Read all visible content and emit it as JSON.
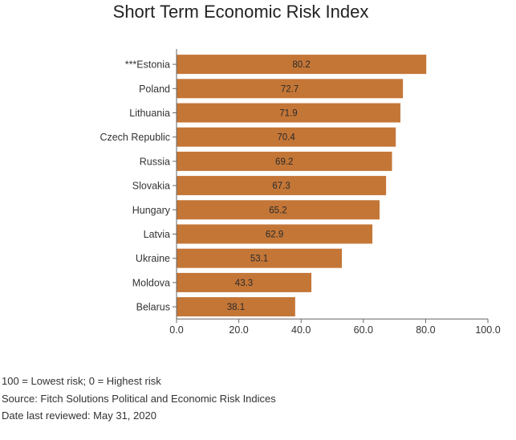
{
  "chart_data": {
    "type": "bar",
    "orientation": "horizontal",
    "title": "Short Term Economic Risk Index",
    "categories": [
      "***Estonia",
      "Poland",
      "Lithuania",
      "Czech Republic",
      "Russia",
      "Slovakia",
      "Hungary",
      "Latvia",
      "Ukraine",
      "Moldova",
      "Belarus"
    ],
    "values": [
      80.2,
      72.7,
      71.9,
      70.4,
      69.2,
      67.3,
      65.2,
      62.9,
      53.1,
      43.3,
      38.1
    ],
    "value_labels": [
      "80.2",
      "72.7",
      "71.9",
      "70.4",
      "69.2",
      "67.3",
      "65.2",
      "62.9",
      "53.1",
      "43.3",
      "38.1"
    ],
    "xlim": [
      0,
      100
    ],
    "xticks": [
      "0.0",
      "20.0",
      "40.0",
      "60.0",
      "80.0",
      "100.0"
    ],
    "xlabel": "",
    "ylabel": "",
    "grid": false,
    "bar_color": "#c47637"
  },
  "notes": {
    "line1": "100 = Lowest risk; 0 = Highest risk",
    "line2": "Source: Fitch Solutions Political and Economic Risk Indices",
    "line3": "Date last reviewed: May 31, 2020"
  }
}
